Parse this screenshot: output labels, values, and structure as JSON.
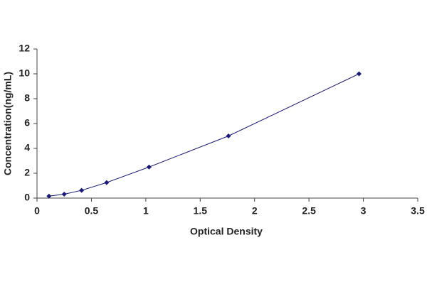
{
  "chart_data": {
    "type": "scatter",
    "x_label": "Optical Density",
    "y_label": "Concentration(ng/mL)",
    "x": [
      0.11,
      0.25,
      0.41,
      0.64,
      1.03,
      1.76,
      2.96
    ],
    "values": [
      0.156,
      0.312,
      0.625,
      1.25,
      2.5,
      5,
      10
    ],
    "color": "#1a1a7a",
    "xlim": [
      0,
      3.5
    ],
    "xticks": [
      0,
      0.5,
      1,
      1.5,
      2,
      2.5,
      3,
      3.5
    ],
    "ylim": [
      0,
      12
    ],
    "yticks": [
      0,
      2,
      4,
      6,
      8,
      10,
      12
    ],
    "grid": false
  }
}
